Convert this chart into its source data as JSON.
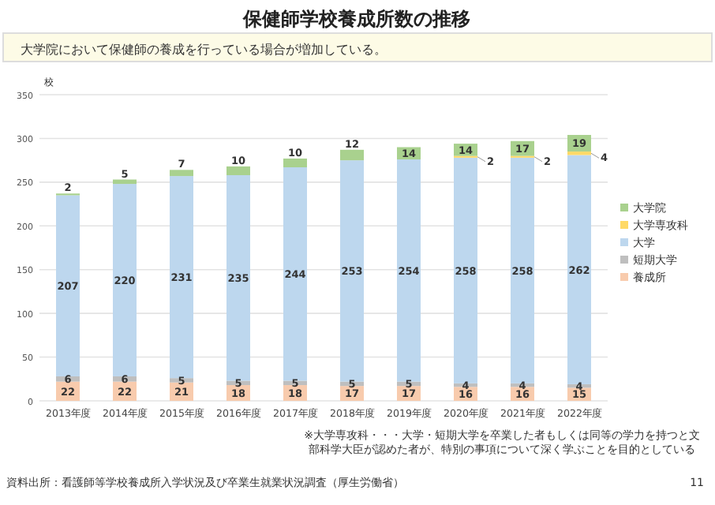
{
  "chart_data": {
    "type": "bar",
    "stacked": true,
    "title": "保健師学校養成所数の推移",
    "subtitle": "大学院において保健師の養成を行っている場合が増加している。",
    "ylabel": "校",
    "categories": [
      "2013年度",
      "2014年度",
      "2015年度",
      "2016年度",
      "2017年度",
      "2018年度",
      "2019年度",
      "2020年度",
      "2021年度",
      "2022年度"
    ],
    "series": [
      {
        "name": "養成所",
        "color": "#f8cbad",
        "values": [
          22,
          22,
          21,
          18,
          18,
          17,
          17,
          16,
          16,
          15
        ]
      },
      {
        "name": "短期大学",
        "color": "#bfbfbf",
        "values": [
          6,
          6,
          5,
          5,
          5,
          5,
          5,
          4,
          4,
          4
        ]
      },
      {
        "name": "大学",
        "color": "#bdd7ee",
        "values": [
          207,
          220,
          231,
          235,
          244,
          253,
          254,
          258,
          258,
          262
        ]
      },
      {
        "name": "大学専攻科",
        "color": "#ffd966",
        "values": [
          null,
          null,
          null,
          null,
          null,
          null,
          null,
          2,
          2,
          4
        ]
      },
      {
        "name": "大学院",
        "color": "#a9d18e",
        "values": [
          2,
          5,
          7,
          10,
          10,
          12,
          14,
          14,
          17,
          19
        ]
      }
    ],
    "ylim": [
      0,
      350
    ],
    "yticks": [
      0,
      50,
      100,
      150,
      200,
      250,
      300,
      350
    ],
    "grid": "y",
    "legend": "right",
    "data_labels": true,
    "annotations": [
      "※大学専攻科・・・大学・短期大学を卒業した者もしくは同等の学力を持つと文部科学大臣が認めた者が、特別の事項について深く学ぶことを目的としている",
      "資料出所：看護師等学校養成所入学状況及び卒業生就業状況調査（厚生労働省）",
      "11"
    ]
  }
}
